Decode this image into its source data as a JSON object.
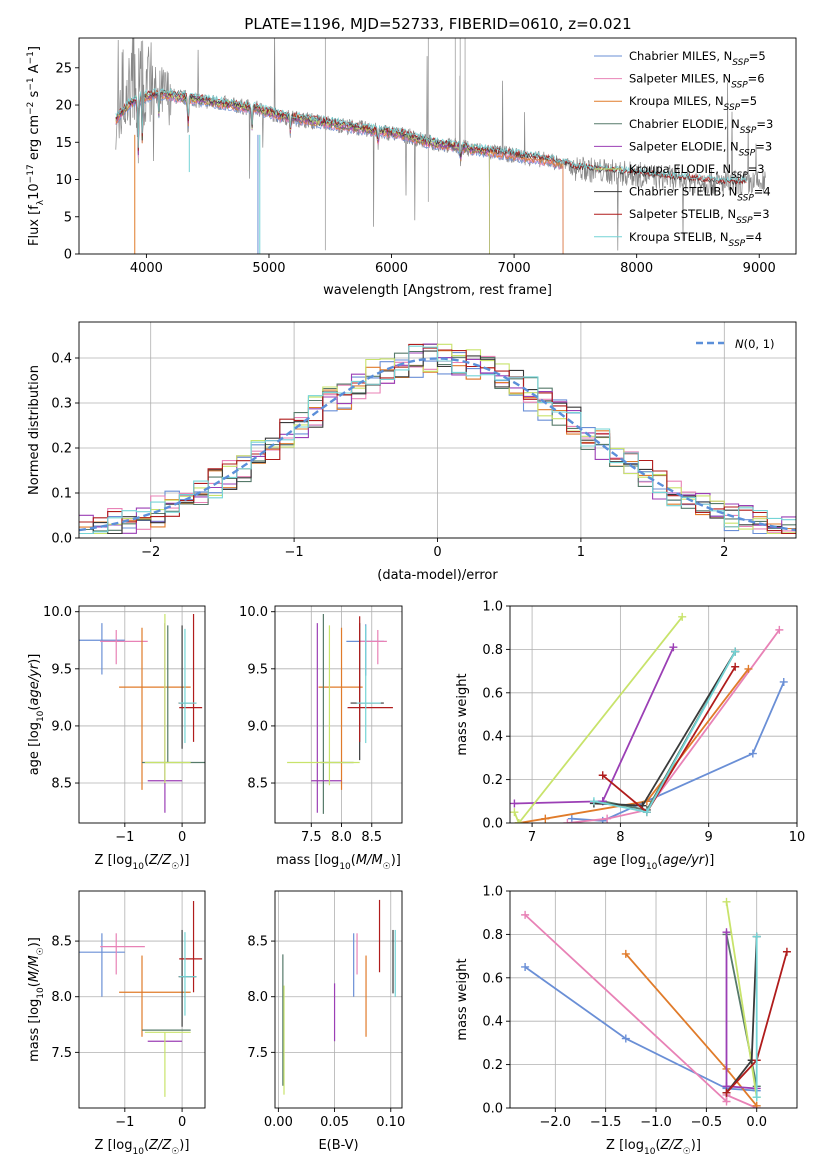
{
  "figure": {
    "title": "PLATE=1196, MJD=52733, FIBERID=0610, z=0.021"
  },
  "colors": {
    "Chabrier MILES": "#6a8fd6",
    "Salpeter MILES": "#e882b6",
    "Kroupa MILES": "#e07b2a",
    "Chabrier ELODIE": "#567a6a",
    "Salpeter ELODIE": "#9b3fb5",
    "Kroupa ELODIE": "#c8e36b",
    "Chabrier STELIB": "#3a3a3a",
    "Salpeter STELIB": "#b01c1c",
    "Kroupa STELIB": "#74d4d6",
    "data": "#888888"
  },
  "chart_data": [
    {
      "id": "spectrum",
      "type": "line",
      "xlabel": "wavelength [Angstrom, rest frame]",
      "ylabel": "Flux [f_λ10^-17 erg cm^-2 s^-1 A^-1]",
      "xlim": [
        3450,
        9300
      ],
      "ylim": [
        0,
        29
      ],
      "xticks": [
        4000,
        5000,
        6000,
        7000,
        8000,
        9000
      ],
      "yticks": [
        0,
        5,
        10,
        15,
        20,
        25
      ],
      "grid": false,
      "legend": "top-right",
      "continuum": [
        [
          3750,
          18
        ],
        [
          3850,
          20
        ],
        [
          3950,
          21
        ],
        [
          4100,
          21.5
        ],
        [
          4300,
          21
        ],
        [
          4500,
          20.5
        ],
        [
          4700,
          20
        ],
        [
          4900,
          19.5
        ],
        [
          5100,
          18.5
        ],
        [
          5300,
          18
        ],
        [
          5500,
          17.5
        ],
        [
          5700,
          17
        ],
        [
          5900,
          16.5
        ],
        [
          6100,
          16
        ],
        [
          6300,
          15
        ],
        [
          6500,
          14.5
        ],
        [
          6700,
          14
        ],
        [
          6900,
          13.5
        ],
        [
          7100,
          13
        ],
        [
          7300,
          12.5
        ],
        [
          7500,
          11.5
        ],
        [
          7800,
          11
        ],
        [
          8100,
          10.5
        ],
        [
          8400,
          10
        ],
        [
          8700,
          9.5
        ],
        [
          9000,
          9.5
        ]
      ],
      "series": [
        {
          "name": "Chabrier MILES",
          "nssp": "5",
          "end": 7400
        },
        {
          "name": "Salpeter MILES",
          "nssp": "6",
          "end": 7400
        },
        {
          "name": "Kroupa MILES",
          "nssp": "5",
          "end": 7400
        },
        {
          "name": "Chabrier ELODIE",
          "nssp": "3",
          "end": 6800
        },
        {
          "name": "Salpeter ELODIE",
          "nssp": "3",
          "end": 6800
        },
        {
          "name": "Kroupa ELODIE",
          "nssp": "3",
          "end": 6800
        },
        {
          "name": "Chabrier STELIB",
          "nssp": "4",
          "end": 8900
        },
        {
          "name": "Salpeter STELIB",
          "nssp": "3",
          "end": 8900
        },
        {
          "name": "Kroupa STELIB",
          "nssp": "4",
          "end": 8900
        }
      ]
    },
    {
      "id": "residuals",
      "type": "line",
      "xlabel": "(data-model)/error",
      "ylabel": "Normed distribution",
      "xlim": [
        -2.5,
        2.5
      ],
      "ylim": [
        0,
        0.48
      ],
      "xticks": [
        -2,
        -1,
        0,
        1,
        2
      ],
      "yticks": [
        0.0,
        0.1,
        0.2,
        0.3,
        0.4
      ],
      "grid": true,
      "legend": "top-right",
      "legend_label": "N(0,1)",
      "bin_width": 0.1
    },
    {
      "id": "age-vs-Z",
      "type": "scatter",
      "xlabel": "Z [log10(Z/Z☉)]",
      "ylabel": "age  [log10(age/yr)]",
      "xlim": [
        -1.8,
        0.4
      ],
      "ylim": [
        8.15,
        10.05
      ],
      "xticks": [
        -1,
        0
      ],
      "yticks": [
        8.5,
        9.0,
        9.5,
        10.0
      ],
      "grid": true,
      "points": [
        {
          "series": "Chabrier MILES",
          "x": -1.4,
          "y": 9.75,
          "xerr": [
            0.42,
            0.4
          ],
          "yerr": [
            0.3,
            0.15
          ]
        },
        {
          "series": "Salpeter MILES",
          "x": -1.15,
          "y": 9.74,
          "xerr": [
            0.28,
            0.55
          ],
          "yerr": [
            0.2,
            0.1
          ]
        },
        {
          "series": "Kroupa MILES",
          "x": -0.7,
          "y": 9.34,
          "xerr": [
            0.4,
            0.85
          ],
          "yerr": [
            0.9,
            0.52
          ]
        },
        {
          "series": "Chabrier ELODIE",
          "x": -0.25,
          "y": 8.68,
          "xerr": [
            0.45,
            0.65
          ],
          "yerr": [
            0.0,
            1.2
          ]
        },
        {
          "series": "Salpeter ELODIE",
          "x": -0.3,
          "y": 8.52,
          "xerr": [
            0.3,
            0.3
          ],
          "yerr": [
            0.28,
            1.38
          ]
        },
        {
          "series": "Kroupa ELODIE",
          "x": -0.3,
          "y": 8.68,
          "xerr": [
            0.35,
            0.45
          ],
          "yerr": [
            0.18,
            1.3
          ]
        },
        {
          "series": "Chabrier STELIB",
          "x": 0.0,
          "y": 9.2,
          "xerr": [
            0.06,
            0.25
          ],
          "yerr": [
            0.4,
            0.68
          ]
        },
        {
          "series": "Salpeter STELIB",
          "x": 0.2,
          "y": 9.16,
          "xerr": [
            0.25,
            0.15
          ],
          "yerr": [
            0.3,
            0.82
          ]
        },
        {
          "series": "Kroupa STELIB",
          "x": 0.05,
          "y": 9.2,
          "xerr": [
            0.1,
            0.2
          ],
          "yerr": [
            0.35,
            0.65
          ]
        }
      ]
    },
    {
      "id": "age-vs-mass",
      "type": "scatter",
      "xlabel": "mass [log10(M/M☉)]",
      "ylabel": "",
      "xlim": [
        6.9,
        9.0
      ],
      "ylim": [
        8.15,
        10.05
      ],
      "xticks": [
        7.5,
        8.0,
        8.5
      ],
      "yticks": [
        8.5,
        9.0,
        9.5,
        10.0
      ],
      "grid": true,
      "points": [
        {
          "series": "Chabrier MILES",
          "x": 8.4,
          "y": 9.74,
          "xerr": [
            0.32,
            0.3
          ],
          "yerr": [
            0.3,
            0.15
          ]
        },
        {
          "series": "Salpeter MILES",
          "x": 8.6,
          "y": 9.74,
          "xerr": [
            0.3,
            0.15
          ],
          "yerr": [
            0.2,
            0.1
          ]
        },
        {
          "series": "Kroupa MILES",
          "x": 8.0,
          "y": 9.34,
          "xerr": [
            0.38,
            0.35
          ],
          "yerr": [
            0.9,
            0.52
          ]
        },
        {
          "series": "Chabrier ELODIE",
          "x": 7.7,
          "y": 8.68,
          "xerr": [
            0.05,
            0.5
          ],
          "yerr": [
            0.45,
            1.3
          ]
        },
        {
          "series": "Salpeter ELODIE",
          "x": 7.6,
          "y": 8.52,
          "xerr": [
            0.1,
            0.4
          ],
          "yerr": [
            0.28,
            1.38
          ]
        },
        {
          "series": "Kroupa ELODIE",
          "x": 7.8,
          "y": 8.68,
          "xerr": [
            0.7,
            0.5
          ],
          "yerr": [
            0.2,
            1.2
          ]
        },
        {
          "series": "Chabrier STELIB",
          "x": 8.3,
          "y": 9.2,
          "xerr": [
            0.15,
            0.4
          ],
          "yerr": [
            0.5,
            0.7
          ]
        },
        {
          "series": "Salpeter STELIB",
          "x": 8.3,
          "y": 9.16,
          "xerr": [
            0.2,
            0.55
          ],
          "yerr": [
            0.3,
            0.8
          ]
        },
        {
          "series": "Kroupa STELIB",
          "x": 8.4,
          "y": 9.2,
          "xerr": [
            0.15,
            0.25
          ],
          "yerr": [
            0.35,
            0.68
          ]
        }
      ]
    },
    {
      "id": "weight-vs-age",
      "type": "line",
      "xlabel": "age  [log10(age/yr)]",
      "ylabel": "mass weight",
      "xlim": [
        6.75,
        10.0
      ],
      "ylim": [
        0,
        1.0
      ],
      "xticks": [
        7,
        8,
        9,
        10
      ],
      "yticks": [
        0.0,
        0.2,
        0.4,
        0.6,
        0.8,
        1.0
      ],
      "grid": true,
      "series": [
        {
          "name": "Chabrier MILES",
          "x": [
            7.45,
            7.8,
            9.5,
            9.85
          ],
          "y": [
            0.02,
            0.01,
            0.32,
            0.65
          ]
        },
        {
          "name": "Salpeter MILES",
          "x": [
            7.4,
            7.85,
            8.3,
            9.8
          ],
          "y": [
            0.0,
            0.02,
            0.06,
            0.89
          ]
        },
        {
          "name": "Kroupa MILES",
          "x": [
            6.85,
            7.15,
            8.3,
            9.45
          ],
          "y": [
            0.0,
            0.02,
            0.1,
            0.71
          ]
        },
        {
          "name": "Chabrier ELODIE",
          "x": [
            7.8,
            8.3,
            9.3
          ],
          "y": [
            0.1,
            0.06,
            0.79
          ]
        },
        {
          "name": "Salpeter ELODIE",
          "x": [
            6.8,
            7.8,
            8.6
          ],
          "y": [
            0.09,
            0.1,
            0.81
          ]
        },
        {
          "name": "Kroupa ELODIE",
          "x": [
            6.8,
            6.85,
            8.7
          ],
          "y": [
            0.05,
            0.0,
            0.95
          ]
        },
        {
          "name": "Chabrier STELIB",
          "x": [
            7.7,
            8.25,
            9.3
          ],
          "y": [
            0.09,
            0.08,
            0.79
          ]
        },
        {
          "name": "Salpeter STELIB",
          "x": [
            7.8,
            8.3,
            9.3
          ],
          "y": [
            0.22,
            0.05,
            0.72
          ]
        },
        {
          "name": "Kroupa STELIB",
          "x": [
            7.7,
            8.3,
            9.3
          ],
          "y": [
            0.1,
            0.05,
            0.79
          ]
        }
      ]
    },
    {
      "id": "mass-vs-Z",
      "type": "scatter",
      "xlabel": "Z [log10(Z/Z☉)]",
      "ylabel": "mass [log10(M/M☉)]",
      "xlim": [
        -1.8,
        0.4
      ],
      "ylim": [
        7.0,
        8.95
      ],
      "xticks": [
        -1,
        0
      ],
      "yticks": [
        7.5,
        8.0,
        8.5
      ],
      "grid": true,
      "points": [
        {
          "series": "Chabrier MILES",
          "x": -1.4,
          "y": 8.4,
          "xerr": [
            0.42,
            0.4
          ],
          "yerr": [
            0.4,
            0.17
          ]
        },
        {
          "series": "Salpeter MILES",
          "x": -1.15,
          "y": 8.45,
          "xerr": [
            0.28,
            0.5
          ],
          "yerr": [
            0.25,
            0.12
          ]
        },
        {
          "series": "Kroupa MILES",
          "x": -0.7,
          "y": 8.04,
          "xerr": [
            0.4,
            0.85
          ],
          "yerr": [
            0.4,
            0.33
          ]
        },
        {
          "series": "Chabrier ELODIE",
          "x": -0.25,
          "y": 7.7,
          "xerr": [
            0.45,
            0.4
          ],
          "yerr": [
            0.0,
            0.0
          ]
        },
        {
          "series": "Salpeter ELODIE",
          "x": -0.3,
          "y": 7.6,
          "xerr": [
            0.3,
            0.3
          ],
          "yerr": [
            0.0,
            0.0
          ]
        },
        {
          "series": "Kroupa ELODIE",
          "x": -0.3,
          "y": 7.68,
          "xerr": [
            0.35,
            0.45
          ],
          "yerr": [
            0.58,
            0.0
          ]
        },
        {
          "series": "Chabrier STELIB",
          "x": 0.0,
          "y": 8.18,
          "xerr": [
            0.06,
            0.25
          ],
          "yerr": [
            0.45,
            0.42
          ]
        },
        {
          "series": "Salpeter STELIB",
          "x": 0.2,
          "y": 8.34,
          "xerr": [
            0.25,
            0.15
          ],
          "yerr": [
            0.3,
            0.52
          ]
        },
        {
          "series": "Kroupa STELIB",
          "x": 0.05,
          "y": 8.18,
          "xerr": [
            0.1,
            0.2
          ],
          "yerr": [
            0.35,
            0.4
          ]
        }
      ]
    },
    {
      "id": "mass-vs-EBV",
      "type": "scatter",
      "xlabel": "E(B-V)",
      "ylabel": "",
      "xlim": [
        -0.003,
        0.11
      ],
      "ylim": [
        7.0,
        8.95
      ],
      "xticks": [
        0.0,
        0.05,
        0.1
      ],
      "yticks": [
        7.5,
        8.0,
        8.5
      ],
      "grid": true,
      "points": [
        {
          "series": "Chabrier MILES",
          "x": 0.067,
          "y": 8.4,
          "xerr": [
            0,
            0
          ],
          "yerr": [
            0.4,
            0.17
          ]
        },
        {
          "series": "Salpeter MILES",
          "x": 0.07,
          "y": 8.45,
          "xerr": [
            0,
            0
          ],
          "yerr": [
            0.25,
            0.12
          ]
        },
        {
          "series": "Kroupa MILES",
          "x": 0.078,
          "y": 8.04,
          "xerr": [
            0,
            0
          ],
          "yerr": [
            0.4,
            0.33
          ]
        },
        {
          "series": "Chabrier ELODIE",
          "x": 0.004,
          "y": 7.7,
          "xerr": [
            0,
            0
          ],
          "yerr": [
            0.5,
            0.68
          ]
        },
        {
          "series": "Salpeter ELODIE",
          "x": 0.05,
          "y": 7.86,
          "xerr": [
            0,
            0
          ],
          "yerr": [
            0.26,
            0.26
          ]
        },
        {
          "series": "Kroupa ELODIE",
          "x": 0.005,
          "y": 7.6,
          "xerr": [
            0,
            0
          ],
          "yerr": [
            0.48,
            0.5
          ]
        },
        {
          "series": "Chabrier STELIB",
          "x": 0.102,
          "y": 8.3,
          "xerr": [
            0,
            0
          ],
          "yerr": [
            0.27,
            0.3
          ]
        },
        {
          "series": "Salpeter STELIB",
          "x": 0.09,
          "y": 8.55,
          "xerr": [
            0,
            0
          ],
          "yerr": [
            0.33,
            0.32
          ]
        },
        {
          "series": "Kroupa STELIB",
          "x": 0.104,
          "y": 8.2,
          "xerr": [
            0,
            0
          ],
          "yerr": [
            0.2,
            0.4
          ]
        }
      ]
    },
    {
      "id": "weight-vs-Z",
      "type": "line",
      "xlabel": "Z [log10(Z/Z☉)]",
      "ylabel": "mass weight",
      "xlim": [
        -2.45,
        0.4
      ],
      "ylim": [
        0,
        1.0
      ],
      "xticks": [
        -2.0,
        -1.5,
        -1.0,
        -0.5,
        0.0
      ],
      "yticks": [
        0.0,
        0.2,
        0.4,
        0.6,
        0.8,
        1.0
      ],
      "grid": true,
      "series": [
        {
          "name": "Chabrier MILES",
          "x": [
            -2.3,
            -1.3,
            -0.3,
            0.0
          ],
          "y": [
            0.65,
            0.32,
            0.09,
            0.08
          ]
        },
        {
          "name": "Salpeter MILES",
          "x": [
            -2.3,
            -0.3,
            -0.3,
            0.0
          ],
          "y": [
            0.89,
            0.03,
            0.06,
            0.0
          ]
        },
        {
          "name": "Kroupa MILES",
          "x": [
            -1.3,
            -0.3,
            0.0
          ],
          "y": [
            0.71,
            0.18,
            0.01
          ]
        },
        {
          "name": "Chabrier ELODIE",
          "x": [
            -0.3,
            0.0
          ],
          "y": [
            0.8,
            0.1
          ]
        },
        {
          "name": "Salpeter ELODIE",
          "x": [
            -0.3,
            -0.3,
            0.0
          ],
          "y": [
            0.81,
            0.1,
            0.09
          ]
        },
        {
          "name": "Kroupa ELODIE",
          "x": [
            -0.3,
            0.0
          ],
          "y": [
            0.95,
            0.05
          ]
        },
        {
          "name": "Chabrier STELIB",
          "x": [
            -0.3,
            -0.05,
            0.0
          ],
          "y": [
            0.07,
            0.22,
            0.79
          ]
        },
        {
          "name": "Salpeter STELIB",
          "x": [
            -0.3,
            0.0,
            0.3
          ],
          "y": [
            0.07,
            0.22,
            0.72
          ]
        },
        {
          "name": "Kroupa STELIB",
          "x": [
            0.0,
            0.0
          ],
          "y": [
            0.79,
            0.05
          ]
        }
      ]
    }
  ]
}
